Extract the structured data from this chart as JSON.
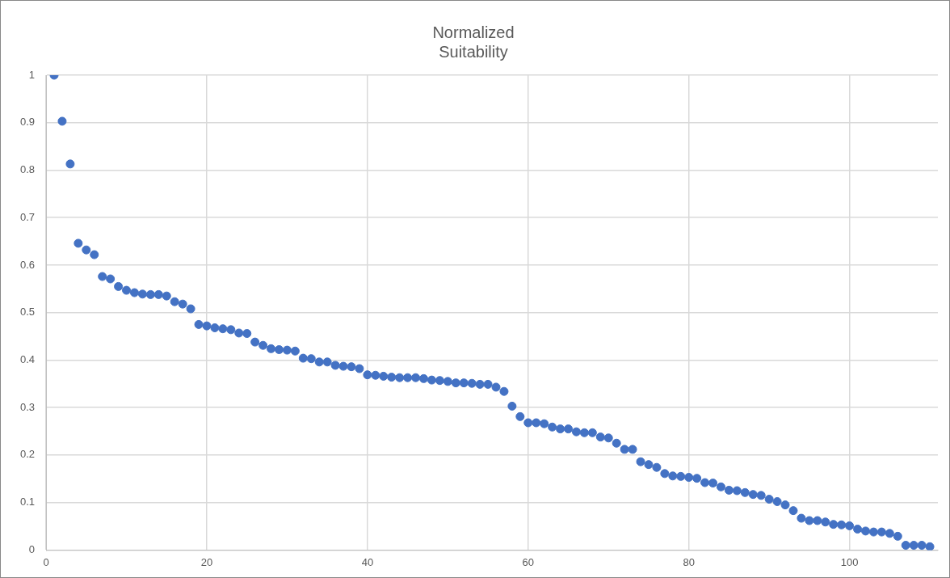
{
  "chart_data": {
    "type": "scatter",
    "title": "Normalized Suitability",
    "marker": "circle",
    "grid": true,
    "legend": false,
    "x": [
      1,
      2,
      3,
      4,
      5,
      6,
      7,
      8,
      9,
      10,
      11,
      12,
      13,
      14,
      15,
      16,
      17,
      18,
      19,
      20,
      21,
      22,
      23,
      24,
      25,
      26,
      27,
      28,
      29,
      30,
      31,
      32,
      33,
      34,
      35,
      36,
      37,
      38,
      39,
      40,
      41,
      42,
      43,
      44,
      45,
      46,
      47,
      48,
      49,
      50,
      51,
      52,
      53,
      54,
      55,
      56,
      57,
      58,
      59,
      60,
      61,
      62,
      63,
      64,
      65,
      66,
      67,
      68,
      69,
      70,
      71,
      72,
      73,
      74,
      75,
      76,
      77,
      78,
      79,
      80,
      81,
      82,
      83,
      84,
      85,
      86,
      87,
      88,
      89,
      90,
      91,
      92,
      93,
      94,
      95,
      96,
      97,
      98,
      99,
      100,
      101,
      102,
      103,
      104,
      105,
      106,
      107,
      108,
      109,
      110
    ],
    "series": [
      {
        "color": "#4472c4",
        "values": [
          1.0,
          0.903,
          0.813,
          0.646,
          0.632,
          0.622,
          0.576,
          0.571,
          0.555,
          0.547,
          0.542,
          0.539,
          0.538,
          0.538,
          0.535,
          0.523,
          0.518,
          0.508,
          0.475,
          0.472,
          0.468,
          0.466,
          0.464,
          0.457,
          0.456,
          0.438,
          0.431,
          0.424,
          0.422,
          0.421,
          0.419,
          0.404,
          0.403,
          0.396,
          0.396,
          0.389,
          0.387,
          0.386,
          0.382,
          0.369,
          0.368,
          0.366,
          0.364,
          0.363,
          0.363,
          0.363,
          0.361,
          0.358,
          0.357,
          0.355,
          0.352,
          0.352,
          0.351,
          0.349,
          0.349,
          0.343,
          0.334,
          0.303,
          0.281,
          0.268,
          0.268,
          0.266,
          0.259,
          0.255,
          0.255,
          0.249,
          0.247,
          0.247,
          0.238,
          0.236,
          0.225,
          0.212,
          0.212,
          0.186,
          0.18,
          0.174,
          0.161,
          0.156,
          0.155,
          0.153,
          0.151,
          0.142,
          0.141,
          0.133,
          0.126,
          0.125,
          0.121,
          0.117,
          0.115,
          0.107,
          0.102,
          0.095,
          0.083,
          0.067,
          0.062,
          0.062,
          0.059,
          0.054,
          0.053,
          0.051,
          0.044,
          0.04,
          0.038,
          0.038,
          0.035,
          0.029,
          0.01,
          0.01,
          0.01,
          0.007
        ]
      }
    ],
    "xlim": [
      0,
      111
    ],
    "xticks": [
      0,
      20,
      40,
      60,
      80,
      100
    ],
    "ylim": [
      0,
      1
    ],
    "yticks": [
      0,
      0.1,
      0.2,
      0.3,
      0.4,
      0.5,
      0.6,
      0.7,
      0.8,
      0.9,
      1
    ]
  }
}
